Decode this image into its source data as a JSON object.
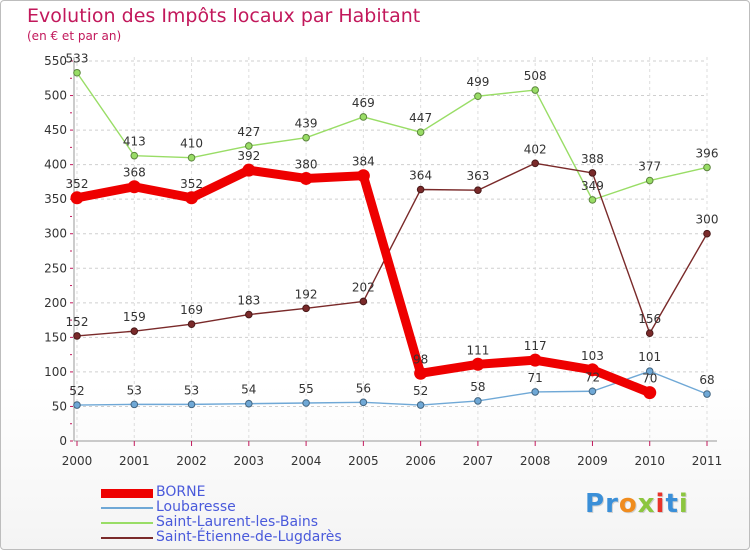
{
  "header": {
    "title": "Evolution des Impôts locaux par Habitant",
    "subtitle": "(en € et par an)"
  },
  "logo": {
    "text": "Proxiti",
    "letters": [
      {
        "ch": "P",
        "color": "#3a8fd8"
      },
      {
        "ch": "r",
        "color": "#3a8fd8"
      },
      {
        "ch": "o",
        "color": "#f08c1e"
      },
      {
        "ch": "x",
        "color": "#8cc63f"
      },
      {
        "ch": "i",
        "color": "#e8332a"
      },
      {
        "ch": "t",
        "color": "#3a8fd8"
      },
      {
        "ch": "i",
        "color": "#8cc63f"
      }
    ]
  },
  "chart_data": {
    "type": "line",
    "title": "Evolution des Impôts locaux par Habitant",
    "subtitle": "(en € et par an)",
    "xlabel": "",
    "ylabel": "",
    "x": [
      "2000",
      "2001",
      "2002",
      "2003",
      "2004",
      "2005",
      "2006",
      "2007",
      "2008",
      "2009",
      "2010",
      "2011"
    ],
    "ylim": [
      0,
      550
    ],
    "yticks": [
      0,
      50,
      100,
      150,
      200,
      250,
      300,
      350,
      400,
      450,
      500,
      550
    ],
    "grid": "horizontal dashed",
    "legend_position": "bottom-left",
    "series": [
      {
        "name": "BORNE",
        "color": "#ee0000",
        "emphasis": "thick",
        "values": [
          352,
          368,
          352,
          392,
          380,
          384,
          98,
          111,
          117,
          103,
          70,
          null
        ],
        "labels": [
          "352",
          "368",
          "352",
          "392",
          "380",
          "384",
          "98",
          "111",
          "117",
          "103",
          "70",
          null
        ]
      },
      {
        "name": "Loubaresse",
        "color": "#6fa8d6",
        "emphasis": "thin",
        "values": [
          52,
          53,
          53,
          54,
          55,
          56,
          52,
          58,
          71,
          72,
          101,
          68
        ],
        "labels": [
          "52",
          "53",
          "53",
          "54",
          "55",
          "56",
          "52",
          "58",
          "71",
          "72",
          "101",
          "68"
        ]
      },
      {
        "name": "Saint-Laurent-les-Bains",
        "color": "#99dd66",
        "emphasis": "thin",
        "values": [
          533,
          413,
          410,
          427,
          439,
          469,
          447,
          499,
          508,
          349,
          377,
          396
        ],
        "labels": [
          "533",
          "413",
          "410",
          "427",
          "439",
          "469",
          "447",
          "499",
          "508",
          "349",
          "377",
          "396"
        ]
      },
      {
        "name": "Saint-Étienne-de-Lugdarès",
        "color": "#7a2a2a",
        "emphasis": "thin",
        "values": [
          152,
          159,
          169,
          183,
          192,
          202,
          364,
          363,
          402,
          388,
          156,
          300
        ],
        "labels": [
          "152",
          "159",
          "169",
          "183",
          "192",
          "202",
          "364",
          "363",
          "402",
          "388",
          "156",
          "300"
        ]
      }
    ]
  }
}
